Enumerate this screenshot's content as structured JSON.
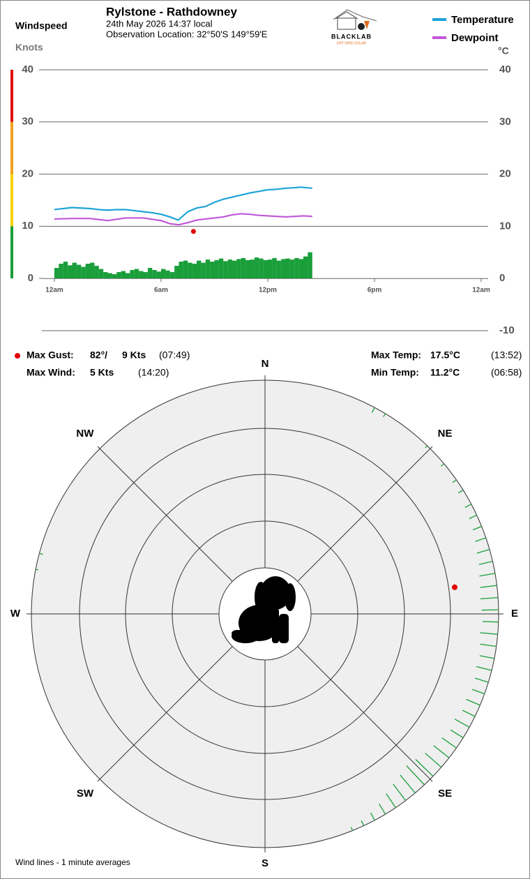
{
  "chart_data": [
    {
      "type": "line",
      "title": "Rylstone - Rathdowney",
      "subtitle": "24th May 2026  14:37 local",
      "location": "Observation Location: 32°50'S 149°59'E",
      "ylabel": "Windspeed",
      "yunit": "Knots",
      "y2label": "°C",
      "xlim": [
        0,
        24
      ],
      "xticks": [
        {
          "value": 0,
          "label": "12am"
        },
        {
          "value": 6,
          "label": "6am"
        },
        {
          "value": 12,
          "label": "12pm"
        },
        {
          "value": 18,
          "label": "6pm"
        },
        {
          "value": 24,
          "label": "12am"
        }
      ],
      "ylim": [
        0,
        40
      ],
      "yticks": [
        0,
        10,
        20,
        30,
        40
      ],
      "y2lim": [
        -10,
        40
      ],
      "y2ticks": [
        -10,
        0,
        10,
        20,
        30,
        40
      ],
      "grid": true,
      "speed_bands": [
        {
          "from": 0,
          "to": 10,
          "color": "#1a9e3a"
        },
        {
          "from": 10,
          "to": 20,
          "color": "#f5d000"
        },
        {
          "from": 20,
          "to": 30,
          "color": "#f0a020"
        },
        {
          "from": 30,
          "to": 40,
          "color": "#e01010"
        }
      ],
      "windspeed": {
        "color": "#1a9e3a",
        "x": [
          0,
          0.25,
          0.5,
          0.75,
          1,
          1.25,
          1.5,
          1.75,
          2,
          2.25,
          2.5,
          2.75,
          3,
          3.25,
          3.5,
          3.75,
          4,
          4.25,
          4.5,
          4.75,
          5,
          5.25,
          5.5,
          5.75,
          6,
          6.25,
          6.5,
          6.75,
          7,
          7.25,
          7.5,
          7.75,
          8,
          8.25,
          8.5,
          8.75,
          9,
          9.25,
          9.5,
          9.75,
          10,
          10.25,
          10.5,
          10.75,
          11,
          11.25,
          11.5,
          11.75,
          12,
          12.25,
          12.5,
          12.75,
          13,
          13.25,
          13.5,
          13.75,
          14,
          14.25
        ],
        "values": [
          2.0,
          2.8,
          3.2,
          2.5,
          3.0,
          2.6,
          2.2,
          2.8,
          3.0,
          2.4,
          1.8,
          1.2,
          1.0,
          0.8,
          1.2,
          1.4,
          1.0,
          1.6,
          1.8,
          1.4,
          1.2,
          2.0,
          1.6,
          1.3,
          1.8,
          1.5,
          1.2,
          2.4,
          3.2,
          3.4,
          3.0,
          2.8,
          3.4,
          3.0,
          3.6,
          3.2,
          3.5,
          3.8,
          3.3,
          3.6,
          3.4,
          3.7,
          3.9,
          3.5,
          3.6,
          4.0,
          3.8,
          3.5,
          3.6,
          3.9,
          3.4,
          3.7,
          3.8,
          3.6,
          3.9,
          3.7,
          4.2,
          5.0
        ]
      },
      "series": [
        {
          "name": "Temperature",
          "color": "#1ba3d8",
          "axis": "y2",
          "x": [
            0,
            0.5,
            1,
            1.5,
            2,
            2.5,
            3,
            3.5,
            4,
            4.5,
            5,
            5.5,
            6,
            6.5,
            6.97,
            7.5,
            8,
            8.5,
            9,
            9.5,
            10,
            10.5,
            11,
            11.5,
            12,
            12.5,
            13,
            13.5,
            13.87,
            14.5
          ],
          "values": [
            13.2,
            13.4,
            13.6,
            13.5,
            13.4,
            13.2,
            13.1,
            13.2,
            13.2,
            13.0,
            12.8,
            12.6,
            12.3,
            11.8,
            11.2,
            12.8,
            13.5,
            13.8,
            14.6,
            15.2,
            15.6,
            16.0,
            16.4,
            16.7,
            17.0,
            17.1,
            17.3,
            17.4,
            17.5,
            17.3
          ]
        },
        {
          "name": "Dewpoint",
          "color": "#c056d8",
          "axis": "y2",
          "x": [
            0,
            1,
            2,
            3,
            4,
            5,
            6,
            6.5,
            7,
            7.5,
            8,
            8.5,
            9,
            9.5,
            10,
            10.5,
            11,
            11.5,
            12,
            12.5,
            13,
            13.5,
            14,
            14.5
          ],
          "values": [
            11.4,
            11.5,
            11.5,
            11.1,
            11.6,
            11.6,
            11.1,
            10.5,
            10.3,
            10.7,
            11.2,
            11.4,
            11.6,
            11.8,
            12.2,
            12.4,
            12.3,
            12.1,
            12.0,
            11.9,
            11.8,
            11.9,
            12.0,
            11.9
          ]
        }
      ],
      "gust": {
        "x": 7.82,
        "value": 9,
        "color": "#e00000"
      }
    },
    {
      "type": "polar",
      "labels": [
        "N",
        "NE",
        "E",
        "SE",
        "S",
        "SW",
        "W",
        "NW"
      ],
      "wind": {
        "color": "#1a9e3a",
        "directions": [
          28,
          31,
          44,
          50,
          55,
          58,
          62,
          65,
          68,
          71,
          74,
          77,
          80,
          83,
          86,
          89,
          92,
          95,
          98,
          101,
          104,
          107,
          110,
          113,
          116,
          119,
          122,
          125,
          128,
          131,
          134,
          137,
          140,
          143,
          146,
          149,
          152,
          155,
          158,
          281,
          285
        ],
        "values": [
          1.2,
          0.8,
          0.6,
          0.8,
          1.0,
          1.2,
          1.5,
          1.8,
          2.0,
          2.4,
          2.8,
          3.0,
          3.4,
          3.6,
          3.8,
          3.6,
          3.4,
          3.8,
          3.5,
          3.2,
          3.4,
          3.0,
          2.8,
          3.2,
          3.0,
          3.6,
          3.2,
          3.8,
          4.2,
          4.6,
          5.2,
          5.6,
          5.0,
          4.4,
          3.6,
          2.6,
          1.8,
          1.2,
          0.8,
          0.6,
          0.8
        ]
      },
      "gust": {
        "direction": 82,
        "value": 9,
        "color": "#e00000"
      },
      "note": "Wind lines - 1 minute averages"
    }
  ],
  "logo": {
    "name": "BLACKLAB",
    "tagline": "OFF GRID SOLAR"
  },
  "stats": {
    "max_gust": {
      "label": "Max Gust:",
      "direction": "82°/",
      "speed": "9 Kts",
      "time": "(07:49)"
    },
    "max_wind": {
      "label": "Max Wind:",
      "speed": "5 Kts",
      "time": "(14:20)"
    },
    "max_temp": {
      "label": "Max Temp:",
      "value": "17.5°C",
      "time": "(13:52)"
    },
    "min_temp": {
      "label": "Min Temp:",
      "value": "11.2°C",
      "time": "(06:58)"
    }
  }
}
